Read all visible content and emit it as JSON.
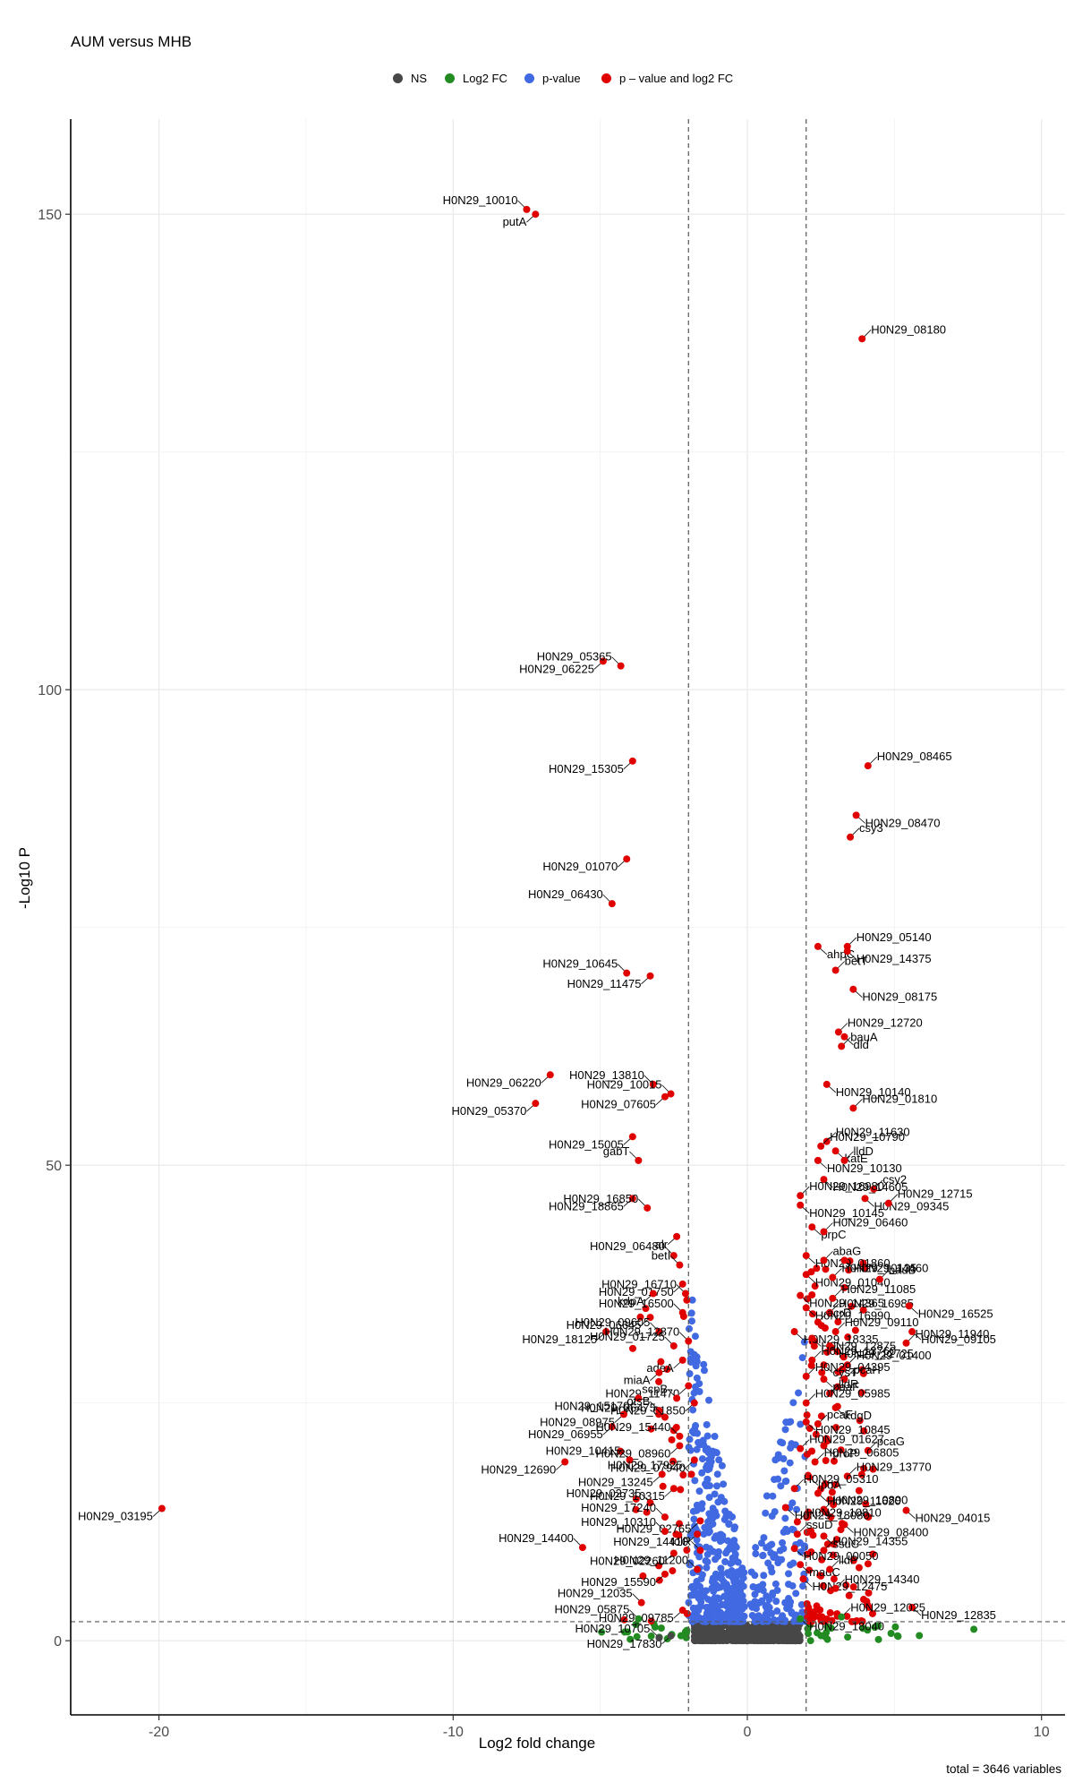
{
  "chart_data": {
    "type": "scatter",
    "title": "AUM versus MHB",
    "xlabel": "Log2 fold change",
    "ylabel": "-Log10 P",
    "caption": "total = 3646 variables",
    "xlim": [
      -23,
      10.8
    ],
    "ylim": [
      -7.8,
      160
    ],
    "xticks": [
      -20,
      -10,
      0,
      10
    ],
    "yticks": [
      0,
      50,
      100,
      150
    ],
    "fc_cutoff": 2,
    "p_cutoff": 2,
    "grid": true,
    "legend_position": "top",
    "legend": [
      {
        "label": "NS",
        "color": "#474747"
      },
      {
        "label": "Log2 FC",
        "color": "#228b22"
      },
      {
        "label": "p-value",
        "color": "#4169e1"
      },
      {
        "label": "p – value and log2 FC",
        "color": "#e00000"
      }
    ],
    "labeled_points": [
      {
        "name": "H0N29_10010",
        "x": -7.5,
        "y": 150.5,
        "group": "sig"
      },
      {
        "name": "putA",
        "x": -7.2,
        "y": 150.0,
        "group": "sig"
      },
      {
        "name": "H0N29_08180",
        "x": 3.9,
        "y": 136.9,
        "group": "sig"
      },
      {
        "name": "H0N29_06225",
        "x": -4.9,
        "y": 103.0,
        "group": "sig"
      },
      {
        "name": "H0N29_05365",
        "x": -4.3,
        "y": 102.5,
        "group": "sig"
      },
      {
        "name": "H0N29_15305",
        "x": -3.9,
        "y": 92.5,
        "group": "sig"
      },
      {
        "name": "H0N29_08465",
        "x": 4.1,
        "y": 92.0,
        "group": "sig"
      },
      {
        "name": "H0N29_08470",
        "x": 3.7,
        "y": 86.8,
        "group": "sig"
      },
      {
        "name": "csy3",
        "x": 3.5,
        "y": 84.5,
        "group": "sig"
      },
      {
        "name": "H0N29_01070",
        "x": -4.1,
        "y": 82.2,
        "group": "sig"
      },
      {
        "name": "H0N29_06430",
        "x": -4.6,
        "y": 77.5,
        "group": "sig"
      },
      {
        "name": "ahpC",
        "x": 2.4,
        "y": 73.0,
        "group": "sig"
      },
      {
        "name": "H0N29_05140",
        "x": 3.4,
        "y": 73.0,
        "group": "sig"
      },
      {
        "name": "H0N29_14375",
        "x": 3.4,
        "y": 72.5,
        "group": "sig"
      },
      {
        "name": "H0N29_10645",
        "x": -4.1,
        "y": 70.2,
        "group": "sig"
      },
      {
        "name": "H0N29_11475",
        "x": -3.3,
        "y": 69.9,
        "group": "sig"
      },
      {
        "name": "betT",
        "x": 3.0,
        "y": 70.5,
        "group": "sig"
      },
      {
        "name": "H0N29_08175",
        "x": 3.6,
        "y": 68.5,
        "group": "sig"
      },
      {
        "name": "H0N29_12720",
        "x": 3.1,
        "y": 64.0,
        "group": "sig"
      },
      {
        "name": "dld",
        "x": 3.3,
        "y": 63.5,
        "group": "sig"
      },
      {
        "name": "bauA",
        "x": 3.2,
        "y": 62.5,
        "group": "sig"
      },
      {
        "name": "H0N29_06220",
        "x": -6.7,
        "y": 59.5,
        "group": "sig"
      },
      {
        "name": "H0N29_13810",
        "x": -3.2,
        "y": 58.5,
        "group": "sig"
      },
      {
        "name": "H0N29_10140",
        "x": 2.7,
        "y": 58.5,
        "group": "sig"
      },
      {
        "name": "H0N29_10015",
        "x": -2.6,
        "y": 57.5,
        "group": "sig"
      },
      {
        "name": "H0N29_07605",
        "x": -2.8,
        "y": 57.2,
        "group": "sig"
      },
      {
        "name": "H0N29_01810",
        "x": 3.6,
        "y": 56.0,
        "group": "sig"
      },
      {
        "name": "H0N29_05370",
        "x": -7.2,
        "y": 56.5,
        "group": "sig"
      },
      {
        "name": "H0N29_11630",
        "x": 2.7,
        "y": 52.5,
        "group": "sig"
      },
      {
        "name": "H0N29_15005",
        "x": -3.9,
        "y": 53.0,
        "group": "sig"
      },
      {
        "name": "H0N29_10790",
        "x": 2.5,
        "y": 52.0,
        "group": "sig"
      },
      {
        "name": "katE",
        "x": 3.0,
        "y": 51.5,
        "group": "sig"
      },
      {
        "name": "gabT",
        "x": -3.7,
        "y": 50.5,
        "group": "sig"
      },
      {
        "name": "H0N29_10130",
        "x": 2.4,
        "y": 50.5,
        "group": "sig"
      },
      {
        "name": "lldD",
        "x": 3.3,
        "y": 50.5,
        "group": "sig"
      },
      {
        "name": "H0N29_14605",
        "x": 2.6,
        "y": 48.5,
        "group": "sig"
      },
      {
        "name": "csy2",
        "x": 4.3,
        "y": 47.5,
        "group": "sig"
      },
      {
        "name": "H0N29_18865",
        "x": -3.9,
        "y": 46.5,
        "group": "sig"
      },
      {
        "name": "H0N29_16980",
        "x": 1.8,
        "y": 46.8,
        "group": "sig"
      },
      {
        "name": "H0N29_09345",
        "x": 4.0,
        "y": 46.5,
        "group": "sig"
      },
      {
        "name": "H0N29_16850",
        "x": -3.4,
        "y": 45.5,
        "group": "sig"
      },
      {
        "name": "H0N29_10145",
        "x": 1.8,
        "y": 45.8,
        "group": "sig"
      },
      {
        "name": "H0N29_12715",
        "x": 4.8,
        "y": 46.0,
        "group": "sig"
      },
      {
        "name": "prpC",
        "x": 2.2,
        "y": 43.5,
        "group": "sig"
      },
      {
        "name": "H0N29_06460",
        "x": 2.6,
        "y": 43.0,
        "group": "sig"
      },
      {
        "name": "alr",
        "x": -2.4,
        "y": 42.5,
        "group": "sig"
      },
      {
        "name": "H0N29_06480",
        "x": -2.5,
        "y": 40.5,
        "group": "sig"
      },
      {
        "name": "H0N29_01860",
        "x": 2.0,
        "y": 40.5,
        "group": "sig"
      },
      {
        "name": "abaG",
        "x": 2.6,
        "y": 40.0,
        "group": "sig"
      },
      {
        "name": "H0N29_14460",
        "x": 3.3,
        "y": 40.0,
        "group": "sig"
      },
      {
        "name": "betI",
        "x": -2.3,
        "y": 39.5,
        "group": "sig"
      },
      {
        "name": "H0N29_01040",
        "x": 2.0,
        "y": 38.5,
        "group": "sig"
      },
      {
        "name": "H0N29_10135",
        "x": 2.9,
        "y": 38.2,
        "group": "sig"
      },
      {
        "name": "H0N29_01750",
        "x": -2.2,
        "y": 37.5,
        "group": "sig"
      },
      {
        "name": "bauB",
        "x": 4.5,
        "y": 38.0,
        "group": "sig"
      },
      {
        "name": "kdpA",
        "x": -3.2,
        "y": 36.5,
        "group": "sig"
      },
      {
        "name": "H0N29_16710",
        "x": -2.1,
        "y": 36.5,
        "group": "sig"
      },
      {
        "name": "H0N29_14365",
        "x": 1.8,
        "y": 36.3,
        "group": "sig"
      },
      {
        "name": "H0N29_11085",
        "x": 2.9,
        "y": 36.0,
        "group": "sig"
      },
      {
        "name": "H0N29_16990",
        "x": 2.0,
        "y": 35.0,
        "group": "sig"
      },
      {
        "name": "H0N29_16985",
        "x": 2.8,
        "y": 34.5,
        "group": "sig"
      },
      {
        "name": "H0N29_16525",
        "x": 5.5,
        "y": 35.2,
        "group": "sig"
      },
      {
        "name": "H0N29_16500",
        "x": -2.2,
        "y": 34.5,
        "group": "sig"
      },
      {
        "name": "H0N29_06645",
        "x": -3.3,
        "y": 34.0,
        "group": "sig"
      },
      {
        "name": "acrD",
        "x": 2.4,
        "y": 33.5,
        "group": "sig"
      },
      {
        "name": "H0N29_18125",
        "x": -4.8,
        "y": 32.5,
        "group": "sig"
      },
      {
        "name": "H0N29_09605",
        "x": -3.0,
        "y": 32.5,
        "group": "sig"
      },
      {
        "name": "H0N29_18335",
        "x": 1.6,
        "y": 32.5,
        "group": "sig"
      },
      {
        "name": "H0N29_09110",
        "x": 3.0,
        "y": 32.5,
        "group": "sig"
      },
      {
        "name": "H0N29_09105",
        "x": 5.6,
        "y": 32.5,
        "group": "sig"
      },
      {
        "name": "H0N29_12870",
        "x": -2.0,
        "y": 31.5,
        "group": "sig"
      },
      {
        "name": "H0N29_12875",
        "x": 2.2,
        "y": 31.8,
        "group": "sig"
      },
      {
        "name": "H0N29_01725",
        "x": -2.5,
        "y": 31.0,
        "group": "sig"
      },
      {
        "name": "H0N29_12725",
        "x": 2.8,
        "y": 31.0,
        "group": "sig"
      },
      {
        "name": "H0N29_11940",
        "x": 5.4,
        "y": 31.3,
        "group": "sig"
      },
      {
        "name": "adeA",
        "x": -2.2,
        "y": 29.5,
        "group": "sig"
      },
      {
        "name": "H0N29_13760",
        "x": 2.2,
        "y": 29.5,
        "group": "sig"
      },
      {
        "name": "cysT",
        "x": 2.6,
        "y": 29.0,
        "group": "sig"
      },
      {
        "name": "H0N29_01400",
        "x": 3.4,
        "y": 29.0,
        "group": "sig"
      },
      {
        "name": "miaA",
        "x": -3.0,
        "y": 28.2,
        "group": "sig"
      },
      {
        "name": "H0N29_04395",
        "x": 2.0,
        "y": 27.8,
        "group": "sig"
      },
      {
        "name": "paaF",
        "x": 2.6,
        "y": 27.5,
        "group": "sig"
      },
      {
        "name": "pcaH",
        "x": 3.3,
        "y": 27.5,
        "group": "sig"
      },
      {
        "name": "H0N29_11470",
        "x": -2.0,
        "y": 26.8,
        "group": "sig"
      },
      {
        "name": "lldR",
        "x": 2.8,
        "y": 26.0,
        "group": "sig"
      },
      {
        "name": "H0N29_15170",
        "x": -3.7,
        "y": 25.5,
        "group": "sig"
      },
      {
        "name": "scpB",
        "x": -2.4,
        "y": 25.5,
        "group": "sig"
      },
      {
        "name": "H0N29_01850",
        "x": -1.8,
        "y": 25.0,
        "group": "sig"
      },
      {
        "name": "H0N29_05985",
        "x": 2.0,
        "y": 25.0,
        "group": "sig"
      },
      {
        "name": "kdgD",
        "x": 3.0,
        "y": 24.5,
        "group": "sig"
      },
      {
        "name": "otsB",
        "x": -3.0,
        "y": 24.2,
        "group": "sig"
      },
      {
        "name": "H0N29_08975",
        "x": -4.2,
        "y": 23.8,
        "group": "sig"
      },
      {
        "name": "H0N29_06475",
        "x": -2.8,
        "y": 23.5,
        "group": "sig"
      },
      {
        "name": "H0N29_10845",
        "x": 2.0,
        "y": 23.0,
        "group": "sig"
      },
      {
        "name": "pcaF",
        "x": 2.4,
        "y": 22.8,
        "group": "sig"
      },
      {
        "name": "H0N29_06955",
        "x": -4.6,
        "y": 22.5,
        "group": "sig"
      },
      {
        "name": "H0N29_15440",
        "x": -2.3,
        "y": 21.5,
        "group": "sig"
      },
      {
        "name": "H0N29_08960",
        "x": -2.3,
        "y": 20.5,
        "group": "sig"
      },
      {
        "name": "H0N29_01627",
        "x": 1.8,
        "y": 20.2,
        "group": "sig"
      },
      {
        "name": "proP",
        "x": 2.6,
        "y": 20.5,
        "group": "sig"
      },
      {
        "name": "pcaG",
        "x": 4.1,
        "y": 20.0,
        "group": "sig"
      },
      {
        "name": "H0N29_12690",
        "x": -6.2,
        "y": 18.8,
        "group": "sig"
      },
      {
        "name": "H0N29_10415",
        "x": -4.0,
        "y": 19.0,
        "group": "sig"
      },
      {
        "name": "H0N29_07940",
        "x": -1.8,
        "y": 19.0,
        "group": "sig"
      },
      {
        "name": "H0N29_06805",
        "x": 2.3,
        "y": 18.8,
        "group": "sig"
      },
      {
        "name": "H0N29_13245",
        "x": -2.9,
        "y": 17.5,
        "group": "sig"
      },
      {
        "name": "H0N29_17925",
        "x": -1.9,
        "y": 17.5,
        "group": "sig"
      },
      {
        "name": "lpdA",
        "x": 2.1,
        "y": 17.2,
        "group": "sig"
      },
      {
        "name": "H0N29_13770",
        "x": 3.4,
        "y": 17.3,
        "group": "sig"
      },
      {
        "name": "H0N29_10315",
        "x": -2.5,
        "y": 16.0,
        "group": "sig"
      },
      {
        "name": "H0N29_05310",
        "x": 1.6,
        "y": 16.0,
        "group": "sig"
      },
      {
        "name": "H0N29_11620",
        "x": 2.4,
        "y": 15.5,
        "group": "sig"
      },
      {
        "name": "H0N29_02735",
        "x": -3.3,
        "y": 14.5,
        "group": "sig"
      },
      {
        "name": "H0N29_18080",
        "x": 1.3,
        "y": 14.0,
        "group": "sig"
      },
      {
        "name": "H0N29_10890",
        "x": 2.6,
        "y": 13.8,
        "group": "sig"
      },
      {
        "name": "H0N29_04015",
        "x": 5.4,
        "y": 13.7,
        "group": "sig"
      },
      {
        "name": "H0N29_17240",
        "x": -2.8,
        "y": 13.0,
        "group": "sig"
      },
      {
        "name": "H0N29_02765",
        "x": -1.6,
        "y": 12.6,
        "group": "sig"
      },
      {
        "name": "H0N29_10810",
        "x": 1.7,
        "y": 12.5,
        "group": "sig"
      },
      {
        "name": "H0N29_08400",
        "x": 3.3,
        "y": 12.2,
        "group": "sig"
      },
      {
        "name": "H0N29_10310",
        "x": -2.8,
        "y": 11.5,
        "group": "sig"
      },
      {
        "name": "H0N29_14410",
        "x": -1.7,
        "y": 11.2,
        "group": "sig"
      },
      {
        "name": "ssuD",
        "x": 1.7,
        "y": 11.2,
        "group": "sig"
      },
      {
        "name": "ssuC",
        "x": 2.6,
        "y": 11.0,
        "group": "sig"
      },
      {
        "name": "H0N29_14400",
        "x": -5.6,
        "y": 9.8,
        "group": "sig"
      },
      {
        "name": "H0N29_02260",
        "x": -2.5,
        "y": 9.2,
        "group": "sig"
      },
      {
        "name": "tolR",
        "x": -1.6,
        "y": 9.5,
        "group": "sig"
      },
      {
        "name": "H0N29_00050",
        "x": 1.6,
        "y": 9.7,
        "group": "sig"
      },
      {
        "name": "H0N29_14355",
        "x": 2.6,
        "y": 9.5,
        "group": "sig"
      },
      {
        "name": "madC",
        "x": 1.8,
        "y": 8.0,
        "group": "sig"
      },
      {
        "name": "lldP",
        "x": 2.8,
        "y": 7.5,
        "group": "sig"
      },
      {
        "name": "H0N29_15590",
        "x": -2.8,
        "y": 7.0,
        "group": "sig"
      },
      {
        "name": "H0N29_11200",
        "x": -1.7,
        "y": 7.5,
        "group": "sig"
      },
      {
        "name": "H0N29_12475",
        "x": 1.9,
        "y": 6.5,
        "group": "sig"
      },
      {
        "name": "H0N29_14340",
        "x": 3.0,
        "y": 5.5,
        "group": "sig"
      },
      {
        "name": "H0N29_12835",
        "x": 5.6,
        "y": 3.5,
        "group": "sig"
      },
      {
        "name": "H0N29_12035",
        "x": -3.6,
        "y": 4.0,
        "group": "sig"
      },
      {
        "name": "H0N29_09785",
        "x": -2.2,
        "y": 3.2,
        "group": "sig"
      },
      {
        "name": "H0N29_05875",
        "x": -3.7,
        "y": 2.3,
        "group": "fc"
      },
      {
        "name": "H0N29_18040",
        "x": 1.8,
        "y": 2.3,
        "group": "fc"
      },
      {
        "name": "H0N29_12025",
        "x": 3.2,
        "y": 2.5,
        "group": "fc"
      },
      {
        "name": "H0N29_17830",
        "x": -2.6,
        "y": 0.5,
        "group": "ns"
      },
      {
        "name": "H0N29_10705",
        "x": -3.0,
        "y": 0.3,
        "group": "ns"
      },
      {
        "name": "H0N29_03195",
        "x": -19.9,
        "y": 13.9,
        "group": "sig"
      }
    ]
  }
}
